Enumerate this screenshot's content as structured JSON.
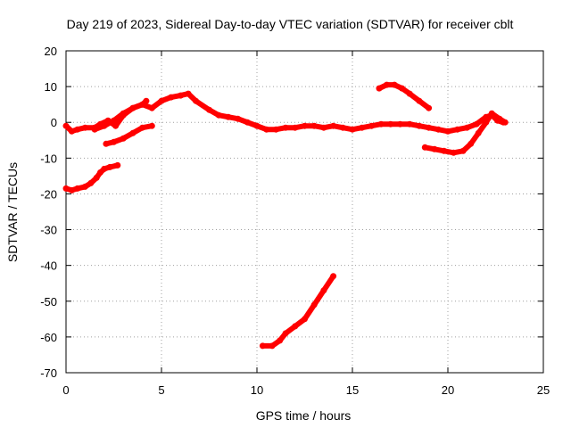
{
  "chart_data": {
    "type": "scatter",
    "title": "Day 219 of 2023, Sidereal Day-to-day VTEC variation (SDTVAR) for receiver cblt",
    "xlabel": "GPS time / hours",
    "ylabel": "SDTVAR / TECUs",
    "xlim": [
      0,
      25
    ],
    "ylim": [
      -70,
      20
    ],
    "xticks": [
      0,
      5,
      10,
      15,
      20,
      25
    ],
    "yticks": [
      -70,
      -60,
      -50,
      -40,
      -30,
      -20,
      -10,
      0,
      10,
      20
    ],
    "grid": true,
    "color": "#ff0000",
    "series": [
      {
        "name": "main-band",
        "points": [
          [
            0,
            -1
          ],
          [
            0.3,
            -2.5
          ],
          [
            0.6,
            -2
          ],
          [
            1,
            -1.5
          ],
          [
            1.5,
            -1.5
          ],
          [
            1.8,
            -0.5
          ],
          [
            2.2,
            0.5
          ],
          [
            2.6,
            -1
          ],
          [
            3,
            2
          ],
          [
            3.5,
            4
          ],
          [
            4,
            5
          ],
          [
            4.5,
            4
          ],
          [
            5,
            6
          ],
          [
            5.5,
            7
          ],
          [
            6,
            7.5
          ],
          [
            6.4,
            8
          ],
          [
            6.8,
            6
          ],
          [
            7.5,
            3.5
          ],
          [
            8,
            2
          ],
          [
            8.5,
            1.5
          ],
          [
            9,
            1
          ],
          [
            9.5,
            0
          ],
          [
            10,
            -1
          ],
          [
            10.5,
            -2
          ],
          [
            11,
            -2
          ],
          [
            11.5,
            -1.5
          ],
          [
            12,
            -1.5
          ],
          [
            12.5,
            -1
          ],
          [
            13,
            -1
          ],
          [
            13.5,
            -1.5
          ],
          [
            14,
            -1
          ],
          [
            14.5,
            -1.5
          ],
          [
            15,
            -2
          ],
          [
            15.5,
            -1.5
          ],
          [
            16,
            -1
          ],
          [
            16.5,
            -0.5
          ],
          [
            17,
            -0.5
          ],
          [
            17.5,
            -0.5
          ],
          [
            18,
            -0.5
          ],
          [
            18.5,
            -1
          ],
          [
            19,
            -1.5
          ],
          [
            19.5,
            -2
          ],
          [
            20,
            -2.5
          ],
          [
            20.5,
            -2
          ],
          [
            21,
            -1.5
          ],
          [
            21.5,
            -0.5
          ],
          [
            22,
            1.5
          ],
          [
            22.3,
            2
          ],
          [
            22.6,
            0.5
          ],
          [
            22.9,
            0
          ]
        ]
      },
      {
        "name": "lower-loop-early",
        "points": [
          [
            2.1,
            -6
          ],
          [
            2.5,
            -5.5
          ],
          [
            3,
            -4.5
          ],
          [
            3.5,
            -3
          ],
          [
            4,
            -1.5
          ],
          [
            4.5,
            -1
          ]
        ]
      },
      {
        "name": "loop-upper-early",
        "points": [
          [
            1.5,
            -2
          ],
          [
            2,
            -1
          ],
          [
            2.5,
            0.5
          ],
          [
            3,
            2.5
          ],
          [
            3.5,
            4
          ],
          [
            4,
            5
          ],
          [
            4.2,
            6
          ]
        ]
      },
      {
        "name": "start-low",
        "points": [
          [
            0,
            -18.5
          ],
          [
            0.3,
            -19
          ],
          [
            0.6,
            -18.5
          ],
          [
            1,
            -18
          ],
          [
            1.3,
            -17
          ],
          [
            1.6,
            -15.5
          ],
          [
            1.8,
            -14
          ],
          [
            2,
            -13
          ],
          [
            2.3,
            -12.5
          ],
          [
            2.7,
            -12
          ]
        ]
      },
      {
        "name": "deep-drop",
        "points": [
          [
            10.3,
            -62.5
          ],
          [
            10.8,
            -62.5
          ],
          [
            11.2,
            -61
          ],
          [
            11.5,
            -59
          ],
          [
            12,
            -57
          ],
          [
            12.5,
            -55
          ],
          [
            13,
            -51
          ],
          [
            13.5,
            -47
          ],
          [
            14,
            -43
          ]
        ]
      },
      {
        "name": "upper-arc",
        "points": [
          [
            16.4,
            9.5
          ],
          [
            16.8,
            10.5
          ],
          [
            17.2,
            10.5
          ],
          [
            17.6,
            9.5
          ],
          [
            18,
            8
          ],
          [
            18.5,
            6
          ],
          [
            19,
            4
          ]
        ]
      },
      {
        "name": "lower-arc",
        "points": [
          [
            18.8,
            -7
          ],
          [
            19.3,
            -7.5
          ],
          [
            19.8,
            -8
          ],
          [
            20.3,
            -8.5
          ],
          [
            20.8,
            -8
          ],
          [
            21.2,
            -6
          ],
          [
            21.6,
            -3
          ],
          [
            22,
            0
          ],
          [
            22.3,
            2.5
          ],
          [
            22.7,
            1
          ],
          [
            23,
            0
          ]
        ]
      }
    ]
  }
}
